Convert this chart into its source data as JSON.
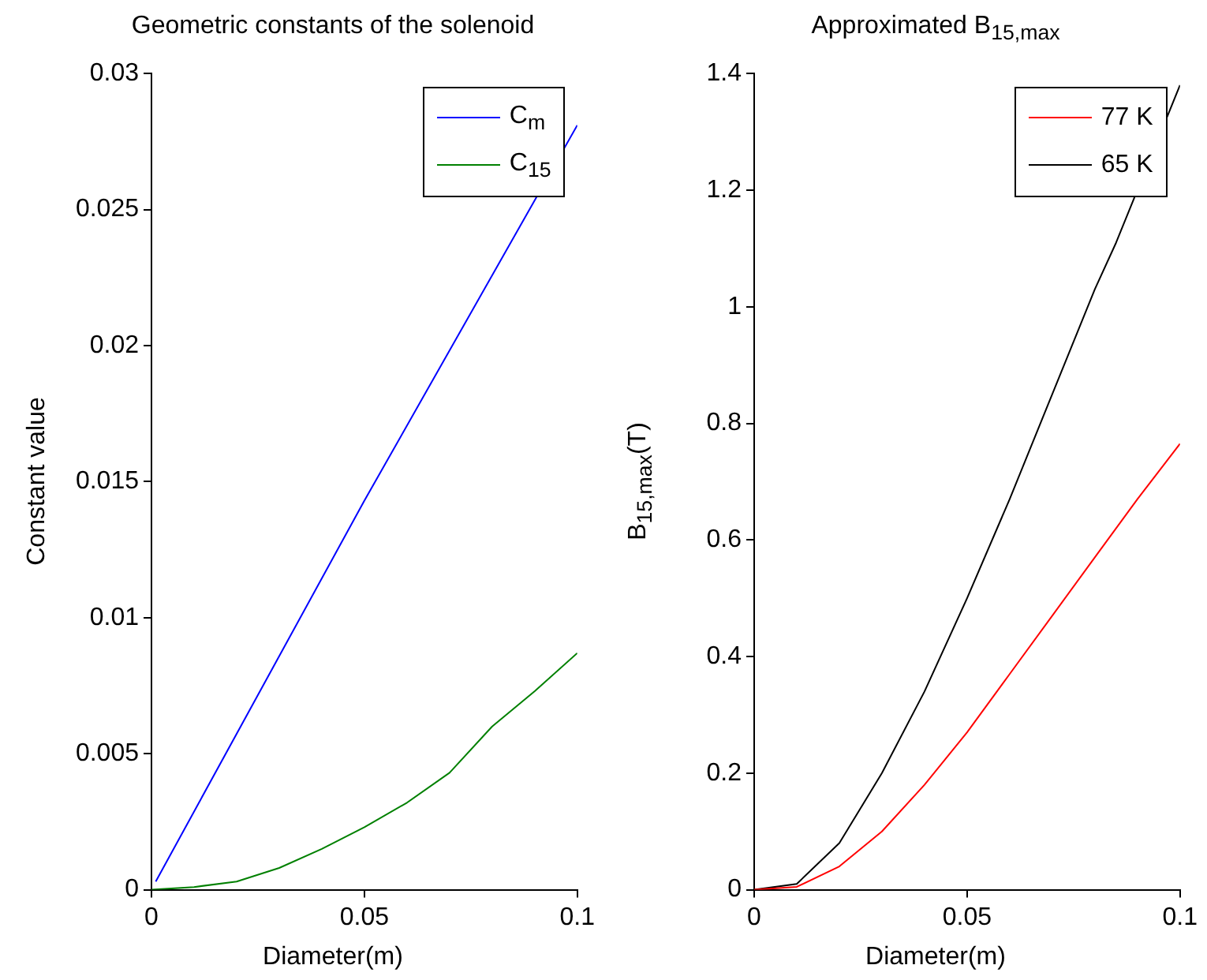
{
  "chart_data": [
    {
      "type": "line",
      "title": "Geometric constants of the solenoid",
      "xlabel": "Diameter(m)",
      "ylabel": "Constant value",
      "xlim": [
        0,
        0.1
      ],
      "xticks": [
        0,
        0.05,
        0.1
      ],
      "ylim": [
        0,
        0.03
      ],
      "yticks": [
        0,
        0.005,
        0.01,
        0.015,
        0.02,
        0.025,
        0.03
      ],
      "grid": false,
      "legend": "top right",
      "series": [
        {
          "name": "C$_{m}$",
          "color": "#0000ff",
          "x": [
            0.001,
            0.05,
            0.1
          ],
          "values": [
            0.0003,
            0.0143,
            0.0281
          ]
        },
        {
          "name": "C$_{15}$",
          "color": "#008000",
          "x": [
            0,
            0.01,
            0.02,
            0.03,
            0.04,
            0.05,
            0.06,
            0.07,
            0.08,
            0.09,
            0.1
          ],
          "values": [
            0,
            0.0001,
            0.0003,
            0.0008,
            0.0015,
            0.0023,
            0.0032,
            0.0043,
            0.006,
            0.0073,
            0.0087
          ]
        }
      ]
    },
    {
      "type": "line",
      "title": "Approximated B$_{15,max}$",
      "xlabel": "Diameter(m)",
      "ylabel": "B$_{15,max}$(T)",
      "xlim": [
        0,
        0.1
      ],
      "xticks": [
        0,
        0.05,
        0.1
      ],
      "ylim": [
        0,
        1.4
      ],
      "yticks": [
        0,
        0.2,
        0.4,
        0.6,
        0.8,
        1,
        1.2,
        1.4
      ],
      "grid": false,
      "legend": "top right",
      "series": [
        {
          "name": "77 K",
          "color": "#ff0000",
          "x": [
            0,
            0.01,
            0.02,
            0.03,
            0.04,
            0.05,
            0.06,
            0.07,
            0.08,
            0.09,
            0.1
          ],
          "values": [
            0,
            0.005,
            0.04,
            0.1,
            0.18,
            0.27,
            0.37,
            0.47,
            0.57,
            0.67,
            0.765
          ]
        },
        {
          "name": "65 K",
          "color": "#000000",
          "x": [
            0,
            0.01,
            0.02,
            0.03,
            0.04,
            0.05,
            0.06,
            0.07,
            0.08,
            0.085,
            0.1
          ],
          "values": [
            0,
            0.01,
            0.08,
            0.2,
            0.34,
            0.5,
            0.67,
            0.85,
            1.03,
            1.11,
            1.38
          ]
        }
      ]
    }
  ]
}
